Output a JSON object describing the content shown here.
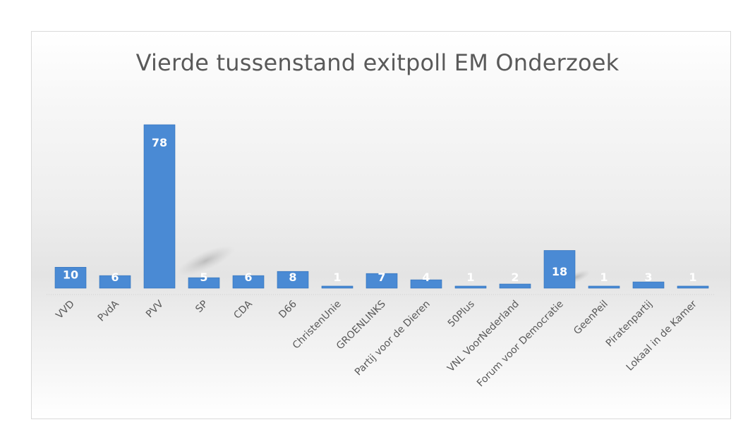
{
  "chart_data": {
    "type": "bar",
    "title": "Vierde tussenstand exitpoll EM Onderzoek",
    "xlabel": "",
    "ylabel": "",
    "categories": [
      "VVD",
      "PvdA",
      "PVV",
      "SP",
      "CDA",
      "D66",
      "ChristenUnie",
      "GROENLINKS",
      "Partij voor de Dieren",
      "50Plus",
      "VNL VoorNederland",
      "Forum voor Democratie",
      "GeenPeil",
      "Piratenpartij",
      "Lokaal in de Kamer"
    ],
    "values": [
      10,
      6,
      78,
      5,
      6,
      8,
      1,
      7,
      4,
      1,
      2,
      18,
      1,
      3,
      1
    ],
    "ylim": [
      0,
      78
    ],
    "grid": false,
    "legend": "none",
    "bar_color": "#4a8ad4",
    "bar_edge_color": "#2e6fb8",
    "data_label_color": "#ffffff",
    "tick_label_color": "#595959"
  }
}
